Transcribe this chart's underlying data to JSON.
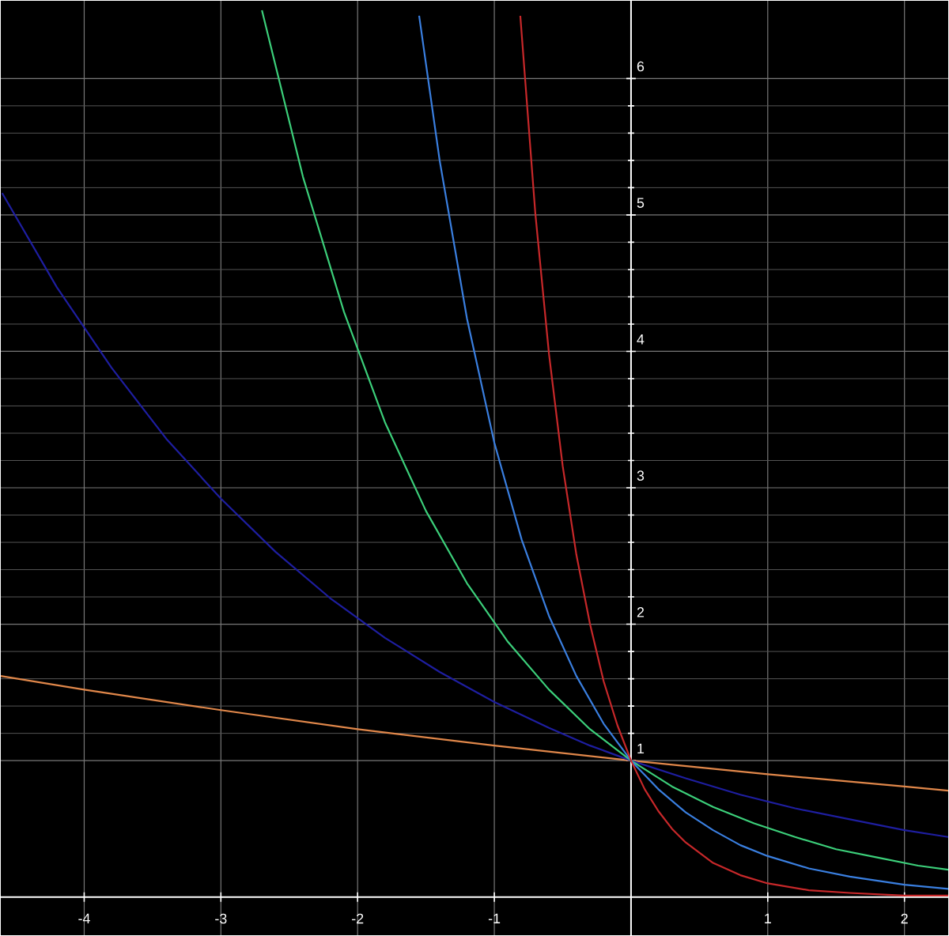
{
  "chart_data": {
    "type": "line",
    "xlim": [
      -4.61,
      2.32
    ],
    "ylim": [
      -0.28,
      6.57
    ],
    "xticks": [
      -4,
      -3,
      -2,
      -1,
      1,
      2
    ],
    "yticks": [
      1,
      2,
      3,
      4,
      5,
      6
    ],
    "grid": true,
    "series": [
      {
        "color": "#e0874a",
        "x": [
          -4.61,
          -4,
          -3,
          -2,
          -1,
          0,
          1,
          2,
          2.32
        ],
        "values": [
          1.62,
          1.52,
          1.37,
          1.23,
          1.11,
          1,
          0.9,
          0.81,
          0.78
        ]
      },
      {
        "color": "#1e1ea0",
        "x": [
          -4.6,
          -4.2,
          -3.8,
          -3.4,
          -3.0,
          -2.6,
          -2.2,
          -1.8,
          -1.4,
          -1.0,
          -0.6,
          -0.3,
          0,
          0.4,
          0.8,
          1.2,
          1.6,
          2.0,
          2.32
        ],
        "values": [
          5.16,
          4.47,
          3.88,
          3.36,
          2.92,
          2.53,
          2.19,
          1.9,
          1.65,
          1.43,
          1.24,
          1.11,
          1,
          0.87,
          0.75,
          0.65,
          0.57,
          0.49,
          0.44
        ]
      },
      {
        "color": "#3ccf7a",
        "x": [
          -2.7,
          -2.4,
          -2.1,
          -1.8,
          -1.5,
          -1.2,
          -0.9,
          -0.6,
          -0.3,
          0,
          0.3,
          0.6,
          0.9,
          1.2,
          1.5,
          1.8,
          2.1,
          2.32
        ],
        "values": [
          6.5,
          5.28,
          4.29,
          3.48,
          2.83,
          2.3,
          1.87,
          1.52,
          1.23,
          1,
          0.81,
          0.66,
          0.54,
          0.44,
          0.35,
          0.29,
          0.23,
          0.2
        ]
      },
      {
        "color": "#3a7fe0",
        "x": [
          -1.55,
          -1.4,
          -1.2,
          -1.0,
          -0.8,
          -0.6,
          -0.4,
          -0.2,
          0,
          0.2,
          0.4,
          0.6,
          0.8,
          1.0,
          1.3,
          1.6,
          2.0,
          2.32
        ],
        "values": [
          6.46,
          5.4,
          4.24,
          3.33,
          2.62,
          2.06,
          1.62,
          1.27,
          1,
          0.79,
          0.62,
          0.49,
          0.38,
          0.3,
          0.21,
          0.15,
          0.09,
          0.06
        ]
      },
      {
        "color": "#c8282a",
        "x": [
          -0.81,
          -0.7,
          -0.6,
          -0.5,
          -0.4,
          -0.3,
          -0.2,
          -0.1,
          0,
          0.1,
          0.2,
          0.3,
          0.4,
          0.6,
          0.8,
          1.0,
          1.3,
          1.6,
          2.0,
          2.32
        ],
        "values": [
          6.46,
          5.01,
          3.98,
          3.16,
          2.51,
          2.0,
          1.58,
          1.26,
          1,
          0.79,
          0.63,
          0.5,
          0.4,
          0.25,
          0.16,
          0.1,
          0.05,
          0.03,
          0.01,
          0.01
        ]
      }
    ]
  }
}
